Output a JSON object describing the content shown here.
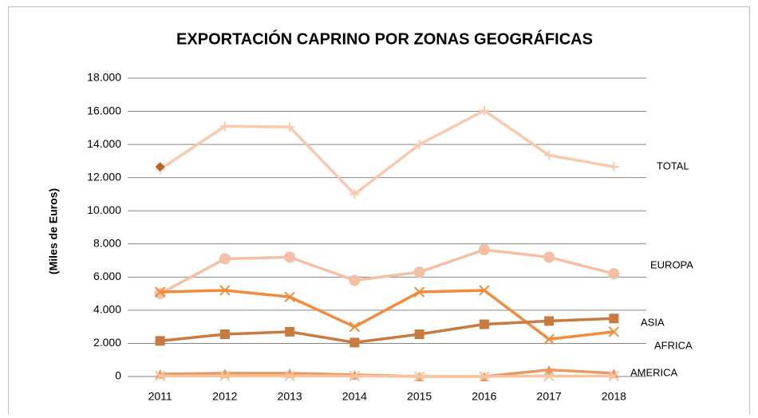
{
  "chart_data": {
    "type": "line",
    "title": "EXPORTACIÓN CAPRINO POR ZONAS GEOGRÁFICAS",
    "y_label": "(Miles de Euros)",
    "categories": [
      "2011",
      "2012",
      "2013",
      "2014",
      "2015",
      "2016",
      "2017",
      "2018"
    ],
    "series": [
      {
        "name": "TOTAL",
        "color": "#f8c9ad",
        "marker": "plus",
        "values": [
          12500,
          15100,
          15050,
          11000,
          14000,
          16050,
          13350,
          12650
        ]
      },
      {
        "color": "#b5652a",
        "marker": "diamond",
        "values": [
          12650,
          null,
          null,
          null,
          null,
          null,
          null,
          null
        ]
      },
      {
        "name": "EUROPA",
        "color": "#f5bfa4",
        "marker": "circle",
        "values": [
          5000,
          7100,
          7200,
          5800,
          6300,
          7650,
          7200,
          6200
        ]
      },
      {
        "name": "AFRICA",
        "color": "#f28c3c",
        "marker": "x",
        "values": [
          5100,
          5200,
          4800,
          3000,
          5100,
          5200,
          2250,
          2700
        ]
      },
      {
        "name": "ASIA",
        "color": "#c87a3f",
        "marker": "square",
        "values": [
          2150,
          2550,
          2700,
          2050,
          2550,
          3150,
          3350,
          3500
        ]
      },
      {
        "name": "AMERICA",
        "color": "#e89a66",
        "marker": "triangle",
        "values": [
          150,
          200,
          200,
          100,
          0,
          0,
          400,
          200
        ]
      },
      {
        "color": "#f8c4a0",
        "marker": "x",
        "values": [
          30,
          30,
          30,
          30,
          0,
          0,
          30,
          30
        ]
      }
    ],
    "ylim": [
      0,
      18000
    ],
    "yticks": [
      0,
      {
        "value": 2000,
        "label": "2.000"
      },
      {
        "value": 4000,
        "label": "4.000"
      },
      {
        "value": 6000,
        "label": "6.000"
      },
      {
        "value": 8000,
        "label": "8.000"
      },
      {
        "value": 10000,
        "label": "10.000"
      },
      {
        "value": 12000,
        "label": "12.000"
      },
      {
        "value": 14000,
        "label": "14.000"
      },
      {
        "value": 16000,
        "label": "16.000"
      },
      {
        "value": 18000,
        "label": "18.000"
      }
    ],
    "grid": true
  }
}
